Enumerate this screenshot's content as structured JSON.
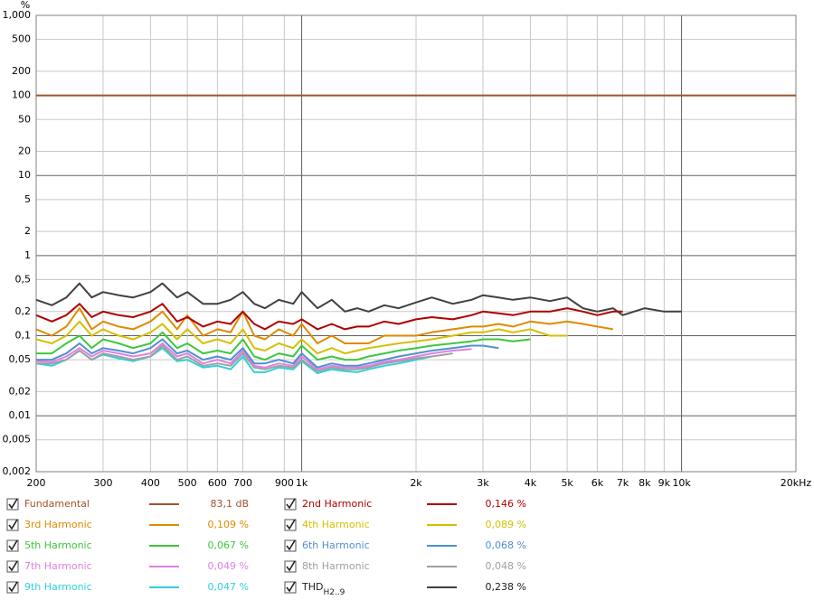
{
  "chart_data": {
    "type": "line",
    "y_unit": "%",
    "xscale": "log",
    "yscale": "log",
    "grid": true,
    "xlim": [
      200,
      20000
    ],
    "ylim": [
      0.002,
      1000
    ],
    "xticks": [
      200,
      300,
      400,
      500,
      600,
      700,
      900,
      {
        "value": 1000,
        "label": "1k"
      },
      {
        "value": 2000,
        "label": "2k"
      },
      {
        "value": 3000,
        "label": "3k"
      },
      {
        "value": 4000,
        "label": "4k"
      },
      {
        "value": 5000,
        "label": "5k"
      },
      {
        "value": 6000,
        "label": "6k"
      },
      {
        "value": 7000,
        "label": "7k"
      },
      {
        "value": 8000,
        "label": "8k"
      },
      {
        "value": 9000,
        "label": "9k"
      },
      {
        "value": 10000,
        "label": "10k"
      },
      {
        "value": 20000,
        "label": "20kHz"
      }
    ],
    "yticks": [
      {
        "value": 1000,
        "label": "1,000"
      },
      500,
      200,
      100,
      50,
      20,
      10,
      5,
      2,
      1,
      {
        "value": 0.5,
        "label": "0,5"
      },
      {
        "value": 0.2,
        "label": "0,2"
      },
      {
        "value": 0.1,
        "label": "0,1"
      },
      {
        "value": 0.05,
        "label": "0,05"
      },
      {
        "value": 0.02,
        "label": "0,02"
      },
      {
        "value": 0.01,
        "label": "0,01"
      },
      {
        "value": 0.005,
        "label": "0,005"
      },
      {
        "value": 0.002,
        "label": "0,002"
      }
    ],
    "x": [
      200,
      220,
      240,
      260,
      280,
      300,
      330,
      360,
      400,
      430,
      470,
      500,
      550,
      600,
      650,
      700,
      750,
      800,
      870,
      950,
      1000,
      1100,
      1200,
      1300,
      1400,
      1500,
      1650,
      1800,
      2000,
      2200,
      2500,
      2800,
      3000,
      3300,
      3600,
      4000,
      4500,
      5000,
      5500,
      6000,
      6600,
      7000,
      8000,
      9000,
      10000,
      20000
    ],
    "series": [
      {
        "name": "Fundamental",
        "color": "#a0522d",
        "legend_value": "83,1 dB",
        "values": [
          100,
          100,
          100,
          100,
          100,
          100,
          100,
          100,
          100,
          100,
          100,
          100,
          100,
          100,
          100,
          100,
          100,
          100,
          100,
          100,
          100,
          100,
          100,
          100,
          100,
          100,
          100,
          100,
          100,
          100,
          100,
          100,
          100,
          100,
          100,
          100,
          100,
          100,
          100,
          100,
          100,
          100,
          100,
          100,
          100,
          100
        ]
      },
      {
        "name": "2nd Harmonic",
        "color": "#b00000",
        "legend_value": "0,146 %",
        "values": [
          0.18,
          0.15,
          0.18,
          0.25,
          0.17,
          0.2,
          0.18,
          0.17,
          0.2,
          0.25,
          0.15,
          0.17,
          0.13,
          0.15,
          0.14,
          0.2,
          0.14,
          0.12,
          0.15,
          0.14,
          0.16,
          0.12,
          0.14,
          0.12,
          0.13,
          0.13,
          0.15,
          0.14,
          0.16,
          0.17,
          0.16,
          0.18,
          0.2,
          0.19,
          0.18,
          0.2,
          0.2,
          0.22,
          0.2,
          0.18,
          0.2,
          0.2,
          null,
          null,
          null,
          null
        ]
      },
      {
        "name": "3rd Harmonic",
        "color": "#e08a00",
        "legend_value": "0,109 %",
        "values": [
          0.12,
          0.1,
          0.13,
          0.22,
          0.12,
          0.15,
          0.13,
          0.12,
          0.15,
          0.2,
          0.12,
          0.18,
          0.1,
          0.12,
          0.11,
          0.2,
          0.1,
          0.09,
          0.12,
          0.1,
          0.14,
          0.08,
          0.1,
          0.08,
          0.08,
          0.08,
          0.1,
          0.1,
          0.1,
          0.11,
          0.12,
          0.13,
          0.13,
          0.14,
          0.13,
          0.15,
          0.14,
          0.15,
          0.14,
          0.13,
          0.12,
          null,
          null,
          null,
          null,
          null
        ]
      },
      {
        "name": "4th Harmonic",
        "color": "#d4c000",
        "legend_value": "0,089 %",
        "values": [
          0.09,
          0.08,
          0.1,
          0.15,
          0.1,
          0.12,
          0.1,
          0.09,
          0.11,
          0.14,
          0.09,
          0.12,
          0.08,
          0.09,
          0.08,
          0.12,
          0.07,
          0.065,
          0.08,
          0.07,
          0.09,
          0.06,
          0.07,
          0.06,
          0.065,
          0.07,
          0.075,
          0.08,
          0.085,
          0.09,
          0.1,
          0.11,
          0.11,
          0.12,
          0.11,
          0.12,
          0.1,
          0.1,
          null,
          null,
          null,
          null,
          null,
          null,
          null,
          null
        ]
      },
      {
        "name": "5th Harmonic",
        "color": "#3cc83c",
        "legend_value": "0,067 %",
        "values": [
          0.06,
          0.06,
          0.08,
          0.1,
          0.07,
          0.09,
          0.08,
          0.07,
          0.08,
          0.11,
          0.07,
          0.08,
          0.06,
          0.065,
          0.06,
          0.09,
          0.055,
          0.05,
          0.06,
          0.055,
          0.075,
          0.05,
          0.055,
          0.05,
          0.05,
          0.055,
          0.06,
          0.065,
          0.07,
          0.075,
          0.08,
          0.085,
          0.09,
          0.09,
          0.085,
          0.09,
          null,
          null,
          null,
          null,
          null,
          null,
          null,
          null,
          null,
          null
        ]
      },
      {
        "name": "6th Harmonic",
        "color": "#5090d0",
        "legend_value": "0,068 %",
        "values": [
          0.05,
          0.05,
          0.06,
          0.08,
          0.06,
          0.07,
          0.065,
          0.06,
          0.07,
          0.09,
          0.06,
          0.065,
          0.05,
          0.055,
          0.05,
          0.07,
          0.045,
          0.045,
          0.05,
          0.045,
          0.06,
          0.04,
          0.045,
          0.042,
          0.042,
          0.045,
          0.05,
          0.055,
          0.06,
          0.065,
          0.07,
          0.075,
          0.075,
          0.07,
          null,
          null,
          null,
          null,
          null,
          null,
          null,
          null,
          null,
          null,
          null,
          null
        ]
      },
      {
        "name": "7th Harmonic",
        "color": "#e080e0",
        "legend_value": "0,049 %",
        "values": [
          0.048,
          0.047,
          0.055,
          0.07,
          0.055,
          0.065,
          0.06,
          0.055,
          0.06,
          0.08,
          0.055,
          0.06,
          0.045,
          0.05,
          0.045,
          0.065,
          0.042,
          0.04,
          0.045,
          0.042,
          0.055,
          0.038,
          0.042,
          0.04,
          0.04,
          0.042,
          0.047,
          0.05,
          0.055,
          0.06,
          0.065,
          0.068,
          null,
          null,
          null,
          null,
          null,
          null,
          null,
          null,
          null,
          null,
          null,
          null,
          null,
          null
        ]
      },
      {
        "name": "8th Harmonic",
        "color": "#a0a0a0",
        "legend_value": "0,048 %",
        "values": [
          0.045,
          0.045,
          0.05,
          0.065,
          0.05,
          0.06,
          0.055,
          0.05,
          0.055,
          0.075,
          0.05,
          0.055,
          0.042,
          0.045,
          0.042,
          0.06,
          0.04,
          0.038,
          0.042,
          0.04,
          0.05,
          0.036,
          0.04,
          0.038,
          0.038,
          0.04,
          0.045,
          0.048,
          0.052,
          0.055,
          0.06,
          null,
          null,
          null,
          null,
          null,
          null,
          null,
          null,
          null,
          null,
          null,
          null,
          null,
          null,
          null
        ]
      },
      {
        "name": "9th Harmonic",
        "color": "#30d0d8",
        "legend_value": "0,047 %",
        "values": [
          0.045,
          0.042,
          0.05,
          0.065,
          0.05,
          0.058,
          0.052,
          0.048,
          0.055,
          0.07,
          0.048,
          0.05,
          0.04,
          0.042,
          0.038,
          0.055,
          0.035,
          0.035,
          0.04,
          0.038,
          0.048,
          0.034,
          0.038,
          0.036,
          0.035,
          0.038,
          0.042,
          0.045,
          0.05,
          0.055,
          null,
          null,
          null,
          null,
          null,
          null,
          null,
          null,
          null,
          null,
          null,
          null,
          null,
          null,
          null,
          null
        ]
      },
      {
        "name": "THD",
        "name_sub": "H2..9",
        "color": "#404040",
        "legend_value": "0,238 %",
        "values": [
          0.28,
          0.24,
          0.3,
          0.45,
          0.3,
          0.35,
          0.32,
          0.3,
          0.35,
          0.45,
          0.3,
          0.35,
          0.25,
          0.25,
          0.28,
          0.35,
          0.25,
          0.22,
          0.28,
          0.25,
          0.35,
          0.22,
          0.28,
          0.2,
          0.22,
          0.2,
          0.24,
          0.22,
          0.26,
          0.3,
          0.25,
          0.28,
          0.32,
          0.3,
          0.28,
          0.3,
          0.27,
          0.3,
          0.22,
          0.2,
          0.22,
          0.18,
          0.22,
          0.2,
          0.2,
          null
        ]
      }
    ]
  }
}
